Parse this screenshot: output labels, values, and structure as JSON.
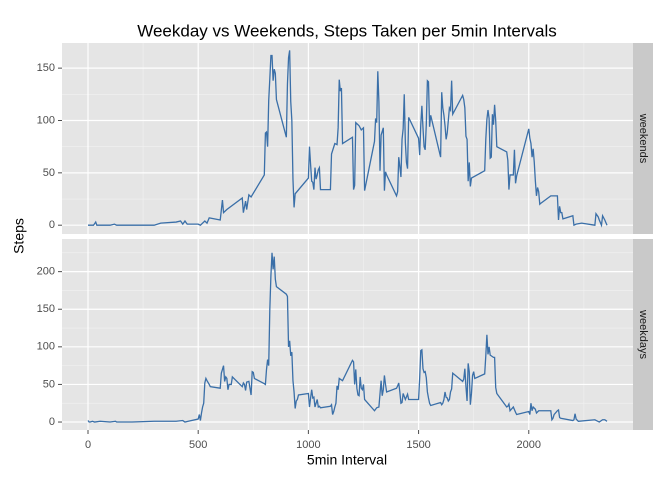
{
  "chart_data": [
    {
      "type": "line",
      "title": "Weekday vs Weekends, Steps Taken per 5min Intervals",
      "y_label": "Steps",
      "facet": "weekends",
      "color": "#3a6fa8",
      "xlim": [
        -118,
        2473
      ],
      "xticks": [
        0,
        500,
        1000,
        1500,
        2000
      ],
      "ylim": [
        -8.4,
        174
      ],
      "yticks": [
        0,
        50,
        100,
        150
      ],
      "grid": true,
      "x": [
        0,
        25,
        35,
        40,
        100,
        120,
        130,
        300,
        330,
        400,
        420,
        430,
        440,
        450,
        500,
        510,
        530,
        540,
        550,
        600,
        610,
        615,
        630,
        700,
        705,
        715,
        720,
        730,
        740,
        800,
        805,
        810,
        815,
        820,
        825,
        830,
        835,
        840,
        845,
        850,
        855,
        900,
        905,
        910,
        915,
        920,
        925,
        930,
        935,
        940,
        1000,
        1005,
        1010,
        1015,
        1020,
        1025,
        1030,
        1035,
        1040,
        1045,
        1050,
        1055,
        1100,
        1105,
        1120,
        1130,
        1135,
        1140,
        1145,
        1150,
        1155,
        1200,
        1205,
        1210,
        1215,
        1230,
        1240,
        1250,
        1255,
        1300,
        1305,
        1310,
        1315,
        1320,
        1325,
        1330,
        1340,
        1345,
        1350,
        1355,
        1400,
        1405,
        1410,
        1415,
        1420,
        1425,
        1430,
        1435,
        1440,
        1445,
        1450,
        1455,
        1500,
        1505,
        1510,
        1515,
        1520,
        1525,
        1530,
        1535,
        1540,
        1545,
        1550,
        1555,
        1600,
        1605,
        1610,
        1615,
        1620,
        1625,
        1630,
        1635,
        1640,
        1645,
        1650,
        1655,
        1700,
        1705,
        1710,
        1715,
        1720,
        1725,
        1730,
        1735,
        1740,
        1800,
        1805,
        1810,
        1815,
        1820,
        1825,
        1830,
        1835,
        1840,
        1845,
        1850,
        1855,
        1900,
        1905,
        1910,
        1915,
        1930,
        1935,
        1940,
        1945,
        2000,
        2005,
        2010,
        2015,
        2020,
        2025,
        2030,
        2035,
        2040,
        2045,
        2050,
        2055,
        2100,
        2130,
        2135,
        2140,
        2145,
        2150,
        2155,
        2200,
        2205,
        2215,
        2240,
        2300,
        2305,
        2315,
        2320,
        2330,
        2335,
        2345,
        2355
      ],
      "values": [
        0,
        0,
        3,
        0,
        0,
        1,
        0,
        0,
        2,
        3,
        4,
        1,
        4,
        1,
        1,
        0,
        4,
        2,
        7,
        5,
        24,
        12,
        15,
        26,
        12,
        23,
        15,
        29,
        27,
        48,
        88,
        89,
        75,
        119,
        140,
        162,
        162,
        138,
        149,
        145,
        120,
        84,
        135,
        160,
        167,
        118,
        100,
        44,
        17,
        30,
        45,
        75,
        58,
        42,
        41,
        34,
        55,
        44,
        48,
        53,
        55,
        34,
        34,
        68,
        78,
        77,
        93,
        139,
        128,
        131,
        78,
        84,
        34,
        38,
        98,
        95,
        91,
        93,
        33,
        80,
        102,
        98,
        147,
        118,
        52,
        86,
        93,
        33,
        51,
        48,
        28,
        32,
        65,
        56,
        46,
        82,
        92,
        125,
        79,
        60,
        54,
        103,
        83,
        67,
        96,
        114,
        93,
        75,
        72,
        96,
        138,
        137,
        94,
        105,
        65,
        127,
        112,
        105,
        95,
        82,
        88,
        100,
        112,
        110,
        138,
        106,
        124,
        120,
        112,
        85,
        82,
        42,
        60,
        37,
        45,
        52,
        82,
        101,
        110,
        102,
        64,
        65,
        106,
        96,
        115,
        100,
        75,
        70,
        62,
        34,
        48,
        48,
        72,
        40,
        47,
        92,
        83,
        78,
        65,
        73,
        60,
        42,
        28,
        36,
        32,
        20,
        21,
        28,
        28,
        5,
        18,
        12,
        12,
        6,
        9,
        0,
        1,
        2,
        0,
        11,
        8,
        5,
        0,
        9,
        5,
        0
      ]
    },
    {
      "type": "line",
      "x_label": "5min Interval",
      "facet": "weekdays",
      "color": "#3a6fa8",
      "xlim": [
        -118,
        2473
      ],
      "xticks": [
        0,
        500,
        1000,
        1500,
        2000
      ],
      "ylim": [
        -10.6,
        243.4
      ],
      "yticks": [
        0,
        50,
        100,
        150,
        200
      ],
      "grid": true,
      "x": [
        0,
        5,
        10,
        20,
        30,
        55,
        100,
        125,
        130,
        200,
        300,
        330,
        400,
        430,
        440,
        455,
        500,
        505,
        510,
        515,
        520,
        525,
        530,
        535,
        540,
        550,
        555,
        600,
        605,
        610,
        615,
        620,
        625,
        630,
        635,
        640,
        650,
        655,
        700,
        705,
        710,
        715,
        720,
        730,
        740,
        745,
        750,
        755,
        800,
        805,
        810,
        815,
        820,
        825,
        830,
        835,
        840,
        845,
        850,
        855,
        900,
        905,
        910,
        915,
        920,
        925,
        930,
        935,
        940,
        945,
        950,
        955,
        1000,
        1005,
        1010,
        1015,
        1020,
        1025,
        1030,
        1035,
        1040,
        1045,
        1050,
        1055,
        1100,
        1105,
        1110,
        1115,
        1120,
        1125,
        1130,
        1135,
        1140,
        1145,
        1150,
        1155,
        1200,
        1205,
        1210,
        1215,
        1220,
        1225,
        1230,
        1235,
        1240,
        1245,
        1250,
        1255,
        1300,
        1310,
        1320,
        1330,
        1335,
        1340,
        1345,
        1350,
        1355,
        1400,
        1405,
        1410,
        1415,
        1420,
        1425,
        1430,
        1440,
        1450,
        1455,
        1500,
        1505,
        1510,
        1515,
        1520,
        1525,
        1530,
        1535,
        1540,
        1545,
        1550,
        1555,
        1600,
        1605,
        1610,
        1615,
        1620,
        1625,
        1630,
        1635,
        1640,
        1645,
        1650,
        1655,
        1700,
        1705,
        1710,
        1715,
        1720,
        1725,
        1730,
        1735,
        1740,
        1745,
        1750,
        1755,
        1800,
        1805,
        1810,
        1815,
        1820,
        1825,
        1830,
        1835,
        1840,
        1845,
        1850,
        1855,
        1900,
        1905,
        1910,
        1915,
        1930,
        1940,
        1945,
        2000,
        2005,
        2010,
        2015,
        2020,
        2030,
        2035,
        2045,
        2100,
        2105,
        2110,
        2115,
        2130,
        2135,
        2140,
        2145,
        2200,
        2205,
        2210,
        2215,
        2225,
        2300,
        2320,
        2335,
        2345,
        2355
      ],
      "values": [
        2,
        0,
        0,
        1,
        0,
        1,
        0,
        1,
        0,
        0,
        1,
        1,
        1,
        2,
        0,
        1,
        4,
        10,
        2,
        12,
        20,
        25,
        52,
        58,
        55,
        50,
        47,
        45,
        65,
        70,
        75,
        54,
        60,
        58,
        43,
        50,
        50,
        60,
        47,
        52,
        50,
        42,
        53,
        54,
        36,
        67,
        66,
        58,
        51,
        50,
        70,
        83,
        75,
        150,
        195,
        225,
        203,
        220,
        190,
        180,
        170,
        167,
        100,
        108,
        88,
        93,
        55,
        40,
        18,
        28,
        30,
        36,
        38,
        20,
        32,
        43,
        32,
        33,
        20,
        25,
        30,
        20,
        21,
        19,
        21,
        23,
        10,
        14,
        20,
        25,
        48,
        43,
        58,
        57,
        56,
        55,
        82,
        80,
        50,
        70,
        45,
        36,
        35,
        60,
        45,
        43,
        50,
        30,
        15,
        19,
        20,
        55,
        35,
        43,
        62,
        50,
        40,
        45,
        48,
        52,
        40,
        25,
        26,
        38,
        30,
        37,
        30,
        30,
        58,
        95,
        96,
        71,
        66,
        67,
        59,
        40,
        32,
        25,
        22,
        26,
        23,
        25,
        30,
        40,
        33,
        32,
        28,
        30,
        40,
        44,
        65,
        54,
        57,
        71,
        47,
        28,
        78,
        67,
        23,
        38,
        62,
        67,
        58,
        64,
        88,
        116,
        90,
        100,
        89,
        88,
        87,
        86,
        86,
        46,
        38,
        20,
        21,
        24,
        15,
        20,
        13,
        10,
        14,
        10,
        25,
        15,
        20,
        17,
        12,
        15,
        15,
        3,
        5,
        10,
        15,
        16,
        6,
        5,
        2,
        3,
        11,
        4,
        1,
        3,
        0,
        3,
        3,
        1
      ]
    }
  ]
}
